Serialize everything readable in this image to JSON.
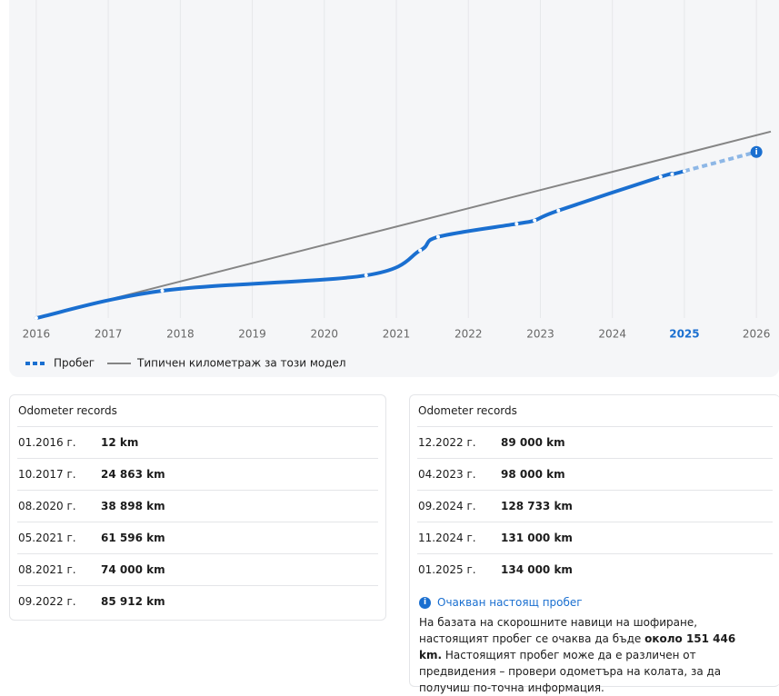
{
  "chart_data": {
    "type": "line",
    "xlim": [
      2015.85,
      2026.2
    ],
    "ylim": [
      0,
      290000
    ],
    "xticks": [
      2016,
      2017,
      2018,
      2019,
      2020,
      2021,
      2022,
      2023,
      2024,
      2025,
      2026
    ],
    "highlight_tick": 2025,
    "grid": true,
    "series": [
      {
        "name": "Пробег",
        "color": "#1a6fd0",
        "x": [
          2016.0,
          2017.75,
          2020.58,
          2021.33,
          2021.58,
          2022.67,
          2022.92,
          2023.25,
          2024.67,
          2024.83,
          2025.0
        ],
        "values": [
          12,
          24863,
          38898,
          61596,
          74000,
          85912,
          89000,
          98000,
          128733,
          131000,
          134000
        ],
        "projection": {
          "color": "#8db7e6",
          "x": [
            2025.0,
            2026.0
          ],
          "values": [
            134000,
            151446
          ]
        }
      },
      {
        "name": "Типичен километраж за този модел",
        "color": "#858585",
        "x": [
          2016.0,
          2026.2
        ],
        "values": [
          0,
          170000
        ]
      }
    ]
  },
  "records": [
    {
      "title": "Odometer records",
      "rows": [
        [
          "01.2016 г.",
          "12 km"
        ],
        [
          "10.2017 г.",
          "24 863 km"
        ],
        [
          "08.2020 г.",
          "38 898 km"
        ],
        [
          "05.2021 г.",
          "61 596 km"
        ],
        [
          "08.2021 г.",
          "74 000 km"
        ],
        [
          "09.2022 г.",
          "85 912 km"
        ]
      ]
    },
    {
      "title": "Odometer records",
      "rows": [
        [
          "12.2022 г.",
          "89 000 km"
        ],
        [
          "04.2023 г.",
          "98 000 km"
        ],
        [
          "09.2024 г.",
          "128 733 km"
        ],
        [
          "11.2024 г.",
          "131 000 km"
        ],
        [
          "01.2025 г.",
          "134 000 km"
        ]
      ]
    }
  ],
  "estimate": {
    "title": "Очакван настоящ пробег",
    "text_before": "На базата на скорошните навици на шофиране, настоящият пробег се очаква да бъде ",
    "bold": "около 151 446 km.",
    "text_after": " Настоящият пробег може да е различен от предвидения – провери одометъра на колата, за да получиш по-точна информация."
  }
}
